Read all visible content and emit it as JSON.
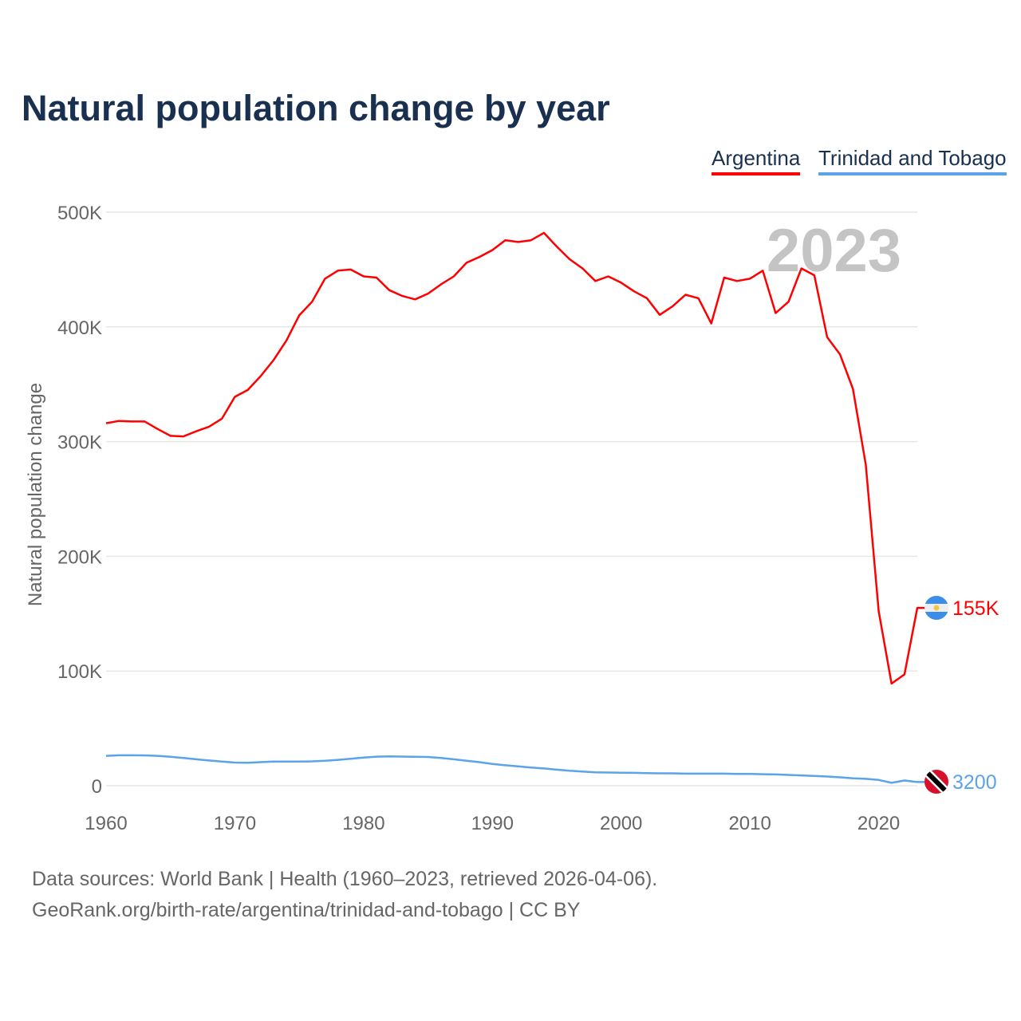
{
  "chart_data": {
    "type": "line",
    "title": "Natural population change by year",
    "ylabel": "Natural population change",
    "xlabel": "",
    "xlim": [
      1960,
      2023
    ],
    "ylim": [
      0,
      500000
    ],
    "x_ticks": [
      1960,
      1970,
      1980,
      1990,
      2000,
      2010,
      2020
    ],
    "y_ticks": [
      0,
      100000,
      200000,
      300000,
      400000,
      500000
    ],
    "y_tick_labels": [
      "0",
      "100K",
      "200K",
      "300K",
      "400K",
      "500K"
    ],
    "grid": true,
    "legend_placement": "top-right",
    "year_label": "2023",
    "x": [
      1960,
      1961,
      1962,
      1963,
      1964,
      1965,
      1966,
      1967,
      1968,
      1969,
      1970,
      1971,
      1972,
      1973,
      1974,
      1975,
      1976,
      1977,
      1978,
      1979,
      1980,
      1981,
      1982,
      1983,
      1984,
      1985,
      1986,
      1987,
      1988,
      1989,
      1990,
      1991,
      1992,
      1993,
      1994,
      1995,
      1996,
      1997,
      1998,
      1999,
      2000,
      2001,
      2002,
      2003,
      2004,
      2005,
      2006,
      2007,
      2008,
      2009,
      2010,
      2011,
      2012,
      2013,
      2014,
      2015,
      2016,
      2017,
      2018,
      2019,
      2020,
      2021,
      2022,
      2023
    ],
    "series": [
      {
        "name": "Argentina",
        "color": "#ff0000",
        "end_label": "155K",
        "flag": "argentina-flag",
        "values": [
          316000,
          318000,
          317500,
          317500,
          311000,
          305000,
          304500,
          309000,
          313000,
          320000,
          339000,
          345000,
          357000,
          371000,
          388000,
          410000,
          422000,
          442000,
          449000,
          450000,
          444000,
          443000,
          432000,
          427000,
          424000,
          429000,
          437000,
          444000,
          456000,
          461000,
          467000,
          475500,
          474000,
          475500,
          482000,
          470000,
          459000,
          451000,
          440000,
          444000,
          438500,
          431000,
          425000,
          410500,
          418000,
          428000,
          425000,
          403000,
          443000,
          440000,
          442000,
          449000,
          412000,
          422000,
          451000,
          445000,
          391000,
          376000,
          346000,
          280000,
          152000,
          89000,
          97000,
          155000
        ]
      },
      {
        "name": "Trinidad and Tobago",
        "color": "#5ba3ea",
        "end_label": "3200",
        "flag": "trinidad-and-tobago-flag",
        "values": [
          26000,
          26500,
          26500,
          26400,
          26000,
          25200,
          24200,
          23000,
          22000,
          21000,
          20200,
          20000,
          20500,
          21000,
          21000,
          21000,
          21200,
          21700,
          22500,
          23500,
          24500,
          25300,
          25500,
          25400,
          25200,
          25000,
          24200,
          23000,
          21800,
          20500,
          19000,
          17800,
          16800,
          15800,
          15000,
          14000,
          13000,
          12300,
          11700,
          11500,
          11300,
          11200,
          11000,
          10800,
          10800,
          10500,
          10500,
          10500,
          10500,
          10300,
          10200,
          10000,
          9800,
          9400,
          9000,
          8500,
          8000,
          7300,
          6500,
          6000,
          5000,
          2500,
          4500,
          3200
        ]
      }
    ]
  },
  "footer": {
    "line1": "Data sources: World Bank | Health (1960–2023, retrieved 2026-04-06).",
    "line2": "GeoRank.org/birth-rate/argentina/trinidad-and-tobago | CC BY"
  }
}
